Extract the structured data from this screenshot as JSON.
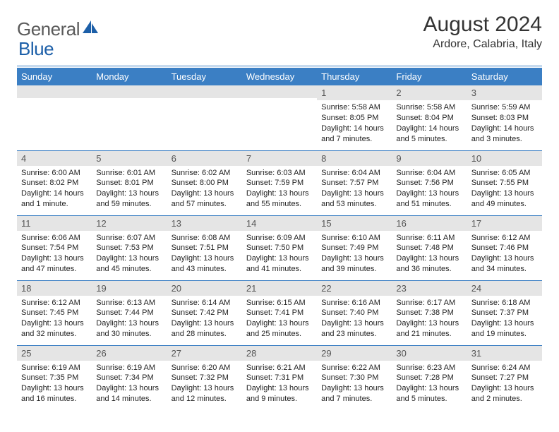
{
  "brand": {
    "part1": "General",
    "part2": "Blue"
  },
  "colors": {
    "header_bg": "#3b7fc4",
    "header_text": "#ffffff",
    "daynum_bg": "#e5e5e5",
    "rule": "#3b7fc4",
    "logo_gray": "#5a5a5a",
    "logo_blue": "#1c5fa8"
  },
  "title": "August 2024",
  "location": "Ardore, Calabria, Italy",
  "weekdays": [
    "Sunday",
    "Monday",
    "Tuesday",
    "Wednesday",
    "Thursday",
    "Friday",
    "Saturday"
  ],
  "weeks": [
    [
      null,
      null,
      null,
      null,
      {
        "n": "1",
        "sr": "5:58 AM",
        "ss": "8:05 PM",
        "dl": "Daylight: 14 hours and 7 minutes."
      },
      {
        "n": "2",
        "sr": "5:58 AM",
        "ss": "8:04 PM",
        "dl": "Daylight: 14 hours and 5 minutes."
      },
      {
        "n": "3",
        "sr": "5:59 AM",
        "ss": "8:03 PM",
        "dl": "Daylight: 14 hours and 3 minutes."
      }
    ],
    [
      {
        "n": "4",
        "sr": "6:00 AM",
        "ss": "8:02 PM",
        "dl": "Daylight: 14 hours and 1 minute."
      },
      {
        "n": "5",
        "sr": "6:01 AM",
        "ss": "8:01 PM",
        "dl": "Daylight: 13 hours and 59 minutes."
      },
      {
        "n": "6",
        "sr": "6:02 AM",
        "ss": "8:00 PM",
        "dl": "Daylight: 13 hours and 57 minutes."
      },
      {
        "n": "7",
        "sr": "6:03 AM",
        "ss": "7:59 PM",
        "dl": "Daylight: 13 hours and 55 minutes."
      },
      {
        "n": "8",
        "sr": "6:04 AM",
        "ss": "7:57 PM",
        "dl": "Daylight: 13 hours and 53 minutes."
      },
      {
        "n": "9",
        "sr": "6:04 AM",
        "ss": "7:56 PM",
        "dl": "Daylight: 13 hours and 51 minutes."
      },
      {
        "n": "10",
        "sr": "6:05 AM",
        "ss": "7:55 PM",
        "dl": "Daylight: 13 hours and 49 minutes."
      }
    ],
    [
      {
        "n": "11",
        "sr": "6:06 AM",
        "ss": "7:54 PM",
        "dl": "Daylight: 13 hours and 47 minutes."
      },
      {
        "n": "12",
        "sr": "6:07 AM",
        "ss": "7:53 PM",
        "dl": "Daylight: 13 hours and 45 minutes."
      },
      {
        "n": "13",
        "sr": "6:08 AM",
        "ss": "7:51 PM",
        "dl": "Daylight: 13 hours and 43 minutes."
      },
      {
        "n": "14",
        "sr": "6:09 AM",
        "ss": "7:50 PM",
        "dl": "Daylight: 13 hours and 41 minutes."
      },
      {
        "n": "15",
        "sr": "6:10 AM",
        "ss": "7:49 PM",
        "dl": "Daylight: 13 hours and 39 minutes."
      },
      {
        "n": "16",
        "sr": "6:11 AM",
        "ss": "7:48 PM",
        "dl": "Daylight: 13 hours and 36 minutes."
      },
      {
        "n": "17",
        "sr": "6:12 AM",
        "ss": "7:46 PM",
        "dl": "Daylight: 13 hours and 34 minutes."
      }
    ],
    [
      {
        "n": "18",
        "sr": "6:12 AM",
        "ss": "7:45 PM",
        "dl": "Daylight: 13 hours and 32 minutes."
      },
      {
        "n": "19",
        "sr": "6:13 AM",
        "ss": "7:44 PM",
        "dl": "Daylight: 13 hours and 30 minutes."
      },
      {
        "n": "20",
        "sr": "6:14 AM",
        "ss": "7:42 PM",
        "dl": "Daylight: 13 hours and 28 minutes."
      },
      {
        "n": "21",
        "sr": "6:15 AM",
        "ss": "7:41 PM",
        "dl": "Daylight: 13 hours and 25 minutes."
      },
      {
        "n": "22",
        "sr": "6:16 AM",
        "ss": "7:40 PM",
        "dl": "Daylight: 13 hours and 23 minutes."
      },
      {
        "n": "23",
        "sr": "6:17 AM",
        "ss": "7:38 PM",
        "dl": "Daylight: 13 hours and 21 minutes."
      },
      {
        "n": "24",
        "sr": "6:18 AM",
        "ss": "7:37 PM",
        "dl": "Daylight: 13 hours and 19 minutes."
      }
    ],
    [
      {
        "n": "25",
        "sr": "6:19 AM",
        "ss": "7:35 PM",
        "dl": "Daylight: 13 hours and 16 minutes."
      },
      {
        "n": "26",
        "sr": "6:19 AM",
        "ss": "7:34 PM",
        "dl": "Daylight: 13 hours and 14 minutes."
      },
      {
        "n": "27",
        "sr": "6:20 AM",
        "ss": "7:32 PM",
        "dl": "Daylight: 13 hours and 12 minutes."
      },
      {
        "n": "28",
        "sr": "6:21 AM",
        "ss": "7:31 PM",
        "dl": "Daylight: 13 hours and 9 minutes."
      },
      {
        "n": "29",
        "sr": "6:22 AM",
        "ss": "7:30 PM",
        "dl": "Daylight: 13 hours and 7 minutes."
      },
      {
        "n": "30",
        "sr": "6:23 AM",
        "ss": "7:28 PM",
        "dl": "Daylight: 13 hours and 5 minutes."
      },
      {
        "n": "31",
        "sr": "6:24 AM",
        "ss": "7:27 PM",
        "dl": "Daylight: 13 hours and 2 minutes."
      }
    ]
  ],
  "labels": {
    "sunrise": "Sunrise: ",
    "sunset": "Sunset: "
  }
}
